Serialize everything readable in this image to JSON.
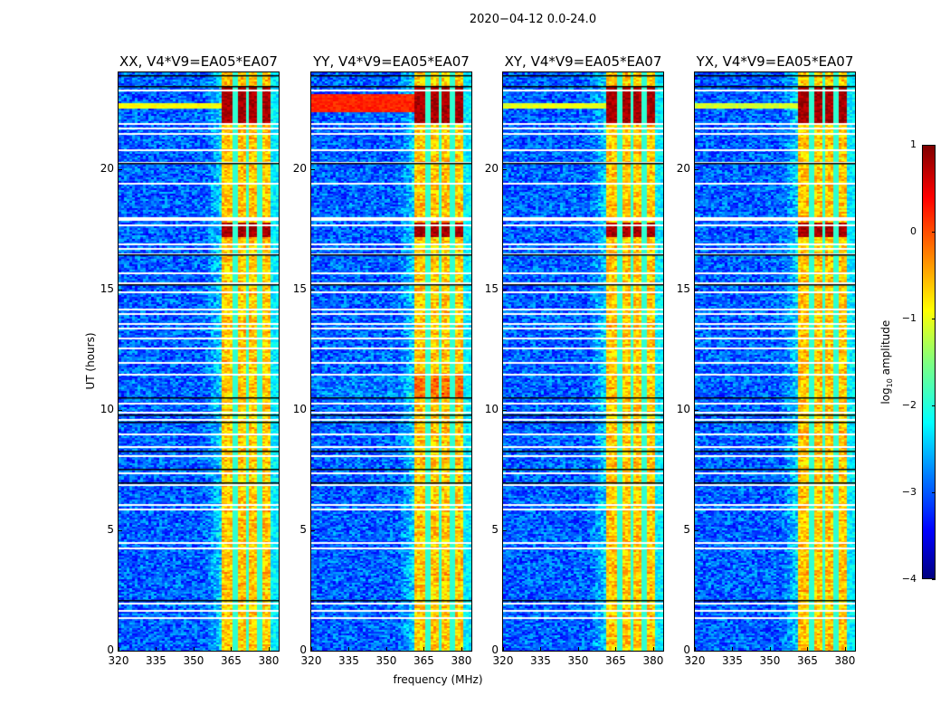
{
  "chart_data": {
    "type": "heatmap",
    "title": "2020-04-12 0.0-24.0",
    "xlabel": "frequency (MHz)",
    "ylabel": "UT (hours)",
    "xlim": [
      320,
      384
    ],
    "ylim": [
      0,
      24
    ],
    "xticks": [
      320,
      335,
      350,
      365,
      380
    ],
    "yticks": [
      0,
      5,
      10,
      15,
      20
    ],
    "colormap": "jet",
    "colorbar": {
      "label_prefix": "log",
      "label_sub": "10",
      "label_suffix": " amplitude",
      "range": [
        -4,
        1
      ],
      "ticks": [
        1,
        0,
        -1,
        -2,
        -3,
        -4
      ]
    },
    "panels": [
      {
        "title": "XX, V4*V9=EA05*EA07",
        "low_line_hours": [
          22.55,
          22.75
        ],
        "low_line_level": -0.9
      },
      {
        "title": "YY, V4*V9=EA05*EA07",
        "low_line_hours": [
          22.4,
          23.1
        ],
        "low_line_level": 0.2
      },
      {
        "title": "XY, V4*V9=EA05*EA07",
        "low_line_hours": [
          22.55,
          22.75
        ],
        "low_line_level": -1.0
      },
      {
        "title": "YX, V4*V9=EA05*EA07",
        "low_line_hours": [
          22.55,
          22.75
        ],
        "low_line_level": -1.1
      }
    ],
    "background_level": -2.9,
    "band_mhz": [
      360.5,
      380.5
    ],
    "band_level": -0.6,
    "band_gaps_mhz": [
      366,
      371,
      376
    ],
    "bright_hours": [
      [
        21.9,
        23.4
      ],
      [
        17.2,
        17.8
      ]
    ],
    "flagged_white_hours": [
      23.3,
      21.9,
      21.7,
      21.5,
      20.8,
      20.3,
      19.4,
      18.0,
      17.9,
      17.7,
      16.9,
      16.7,
      16.5,
      15.7,
      15.3,
      14.9,
      14.2,
      14.0,
      13.6,
      13.4,
      13.0,
      12.6,
      12.0,
      11.5,
      10.3,
      9.9,
      9.6,
      9.0,
      8.5,
      8.1,
      7.4,
      6.9,
      6.1,
      5.9,
      4.5,
      4.3,
      2.0,
      1.7,
      1.4
    ],
    "flagged_black_hours": [
      23.9,
      23.45,
      20.25,
      16.45,
      15.2,
      10.5,
      9.8,
      9.5,
      8.3,
      7.55,
      7.0,
      2.1
    ]
  }
}
